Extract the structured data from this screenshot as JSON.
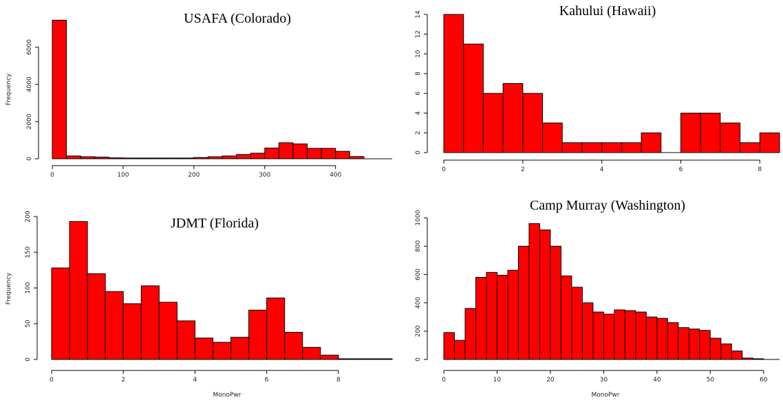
{
  "colors": {
    "bar_fill": "#ff0000",
    "bar_stroke": "#000000"
  },
  "chart_data": [
    {
      "id": "usafa",
      "type": "bar",
      "title": "USAFA (Colorado)",
      "xlabel": "",
      "ylabel": "Frequency",
      "xlim": [
        0,
        480
      ],
      "ylim": [
        0,
        7500
      ],
      "xticks": [
        0,
        100,
        200,
        300,
        400
      ],
      "yticks": [
        0,
        2000,
        4000,
        6000
      ],
      "bin_width": 20,
      "bins": [
        0,
        20,
        40,
        60,
        80,
        100,
        120,
        140,
        160,
        180,
        200,
        220,
        240,
        260,
        280,
        300,
        320,
        340,
        360,
        380,
        400,
        420
      ],
      "values": [
        7450,
        150,
        110,
        90,
        50,
        40,
        40,
        40,
        40,
        40,
        70,
        110,
        150,
        230,
        300,
        580,
        860,
        800,
        560,
        560,
        400,
        120
      ]
    },
    {
      "id": "kahului",
      "type": "bar",
      "title": "Kahului (Hawaii)",
      "xlabel": "",
      "ylabel": "",
      "xlim": [
        0,
        8.5
      ],
      "ylim": [
        0,
        14
      ],
      "xticks": [
        0,
        2,
        4,
        6,
        8
      ],
      "yticks": [
        0,
        2,
        4,
        6,
        8,
        10,
        12,
        14
      ],
      "bin_width": 0.5,
      "bins": [
        0,
        0.5,
        1,
        1.5,
        2,
        2.5,
        3,
        3.5,
        4,
        4.5,
        5,
        5.5,
        6,
        6.5,
        7,
        7.5,
        8
      ],
      "values": [
        14,
        11,
        6,
        7,
        6,
        3,
        1,
        1,
        1,
        1,
        2,
        0,
        4,
        4,
        3,
        1,
        2
      ]
    },
    {
      "id": "jdmt",
      "type": "bar",
      "title": "JDMT (Florida)",
      "xlabel": "MonoPwr",
      "ylabel": "Frequency",
      "xlim": [
        0,
        9.5
      ],
      "ylim": [
        0,
        200
      ],
      "xticks": [
        0,
        2,
        4,
        6,
        8
      ],
      "yticks": [
        0,
        50,
        100,
        150,
        200
      ],
      "bin_width": 0.5,
      "bins": [
        0,
        0.5,
        1,
        1.5,
        2,
        2.5,
        3,
        3.5,
        4,
        4.5,
        5,
        5.5,
        6,
        6.5,
        7,
        7.5,
        8,
        8.5,
        9
      ],
      "values": [
        128,
        193,
        120,
        95,
        78,
        103,
        80,
        54,
        30,
        24,
        31,
        69,
        86,
        38,
        17,
        6,
        1,
        1,
        1
      ]
    },
    {
      "id": "campmurray",
      "type": "bar",
      "title": "Camp Murray (Washington)",
      "xlabel": "MonoPwr",
      "ylabel": "",
      "xlim": [
        0,
        63
      ],
      "ylim": [
        0,
        1000
      ],
      "xticks": [
        0,
        10,
        20,
        30,
        40,
        50,
        60
      ],
      "yticks": [
        0,
        200,
        400,
        600,
        800,
        1000
      ],
      "bin_width": 2,
      "bins": [
        0,
        2,
        4,
        6,
        8,
        10,
        12,
        14,
        16,
        18,
        20,
        22,
        24,
        26,
        28,
        30,
        32,
        34,
        36,
        38,
        40,
        42,
        44,
        46,
        48,
        50,
        52,
        54,
        56,
        58
      ],
      "values": [
        190,
        135,
        360,
        580,
        615,
        595,
        630,
        800,
        960,
        915,
        800,
        590,
        510,
        400,
        335,
        320,
        350,
        345,
        335,
        300,
        290,
        260,
        225,
        215,
        205,
        150,
        110,
        60,
        10,
        5
      ]
    }
  ]
}
